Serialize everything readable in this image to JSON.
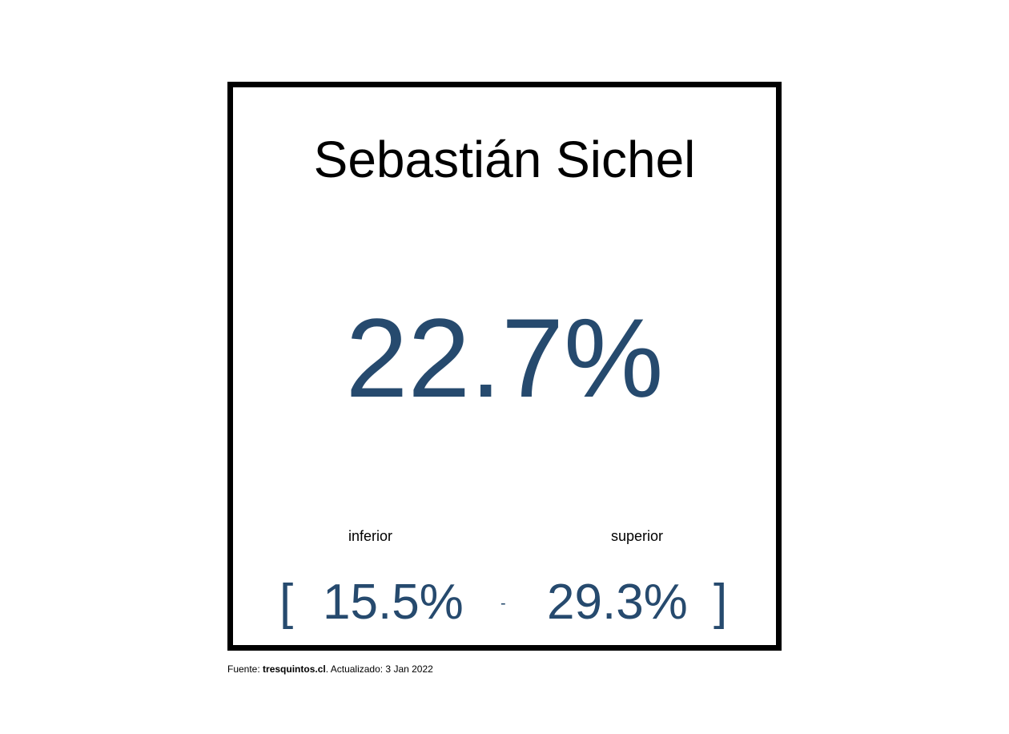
{
  "candidate": {
    "name": "Sebastián Sichel",
    "value": "22.7%"
  },
  "interval": {
    "lower_label": "inferior",
    "upper_label": "superior",
    "bracket_open": "[",
    "lower_value": "15.5%",
    "separator": "-",
    "upper_value": "29.3%",
    "bracket_close": "]"
  },
  "footer": {
    "prefix": "Fuente: ",
    "source": "tresquintos.cl",
    "suffix": ". Actualizado: 3 Jan 2022"
  },
  "colors": {
    "accent": "#264a6e",
    "border": "#000000"
  }
}
